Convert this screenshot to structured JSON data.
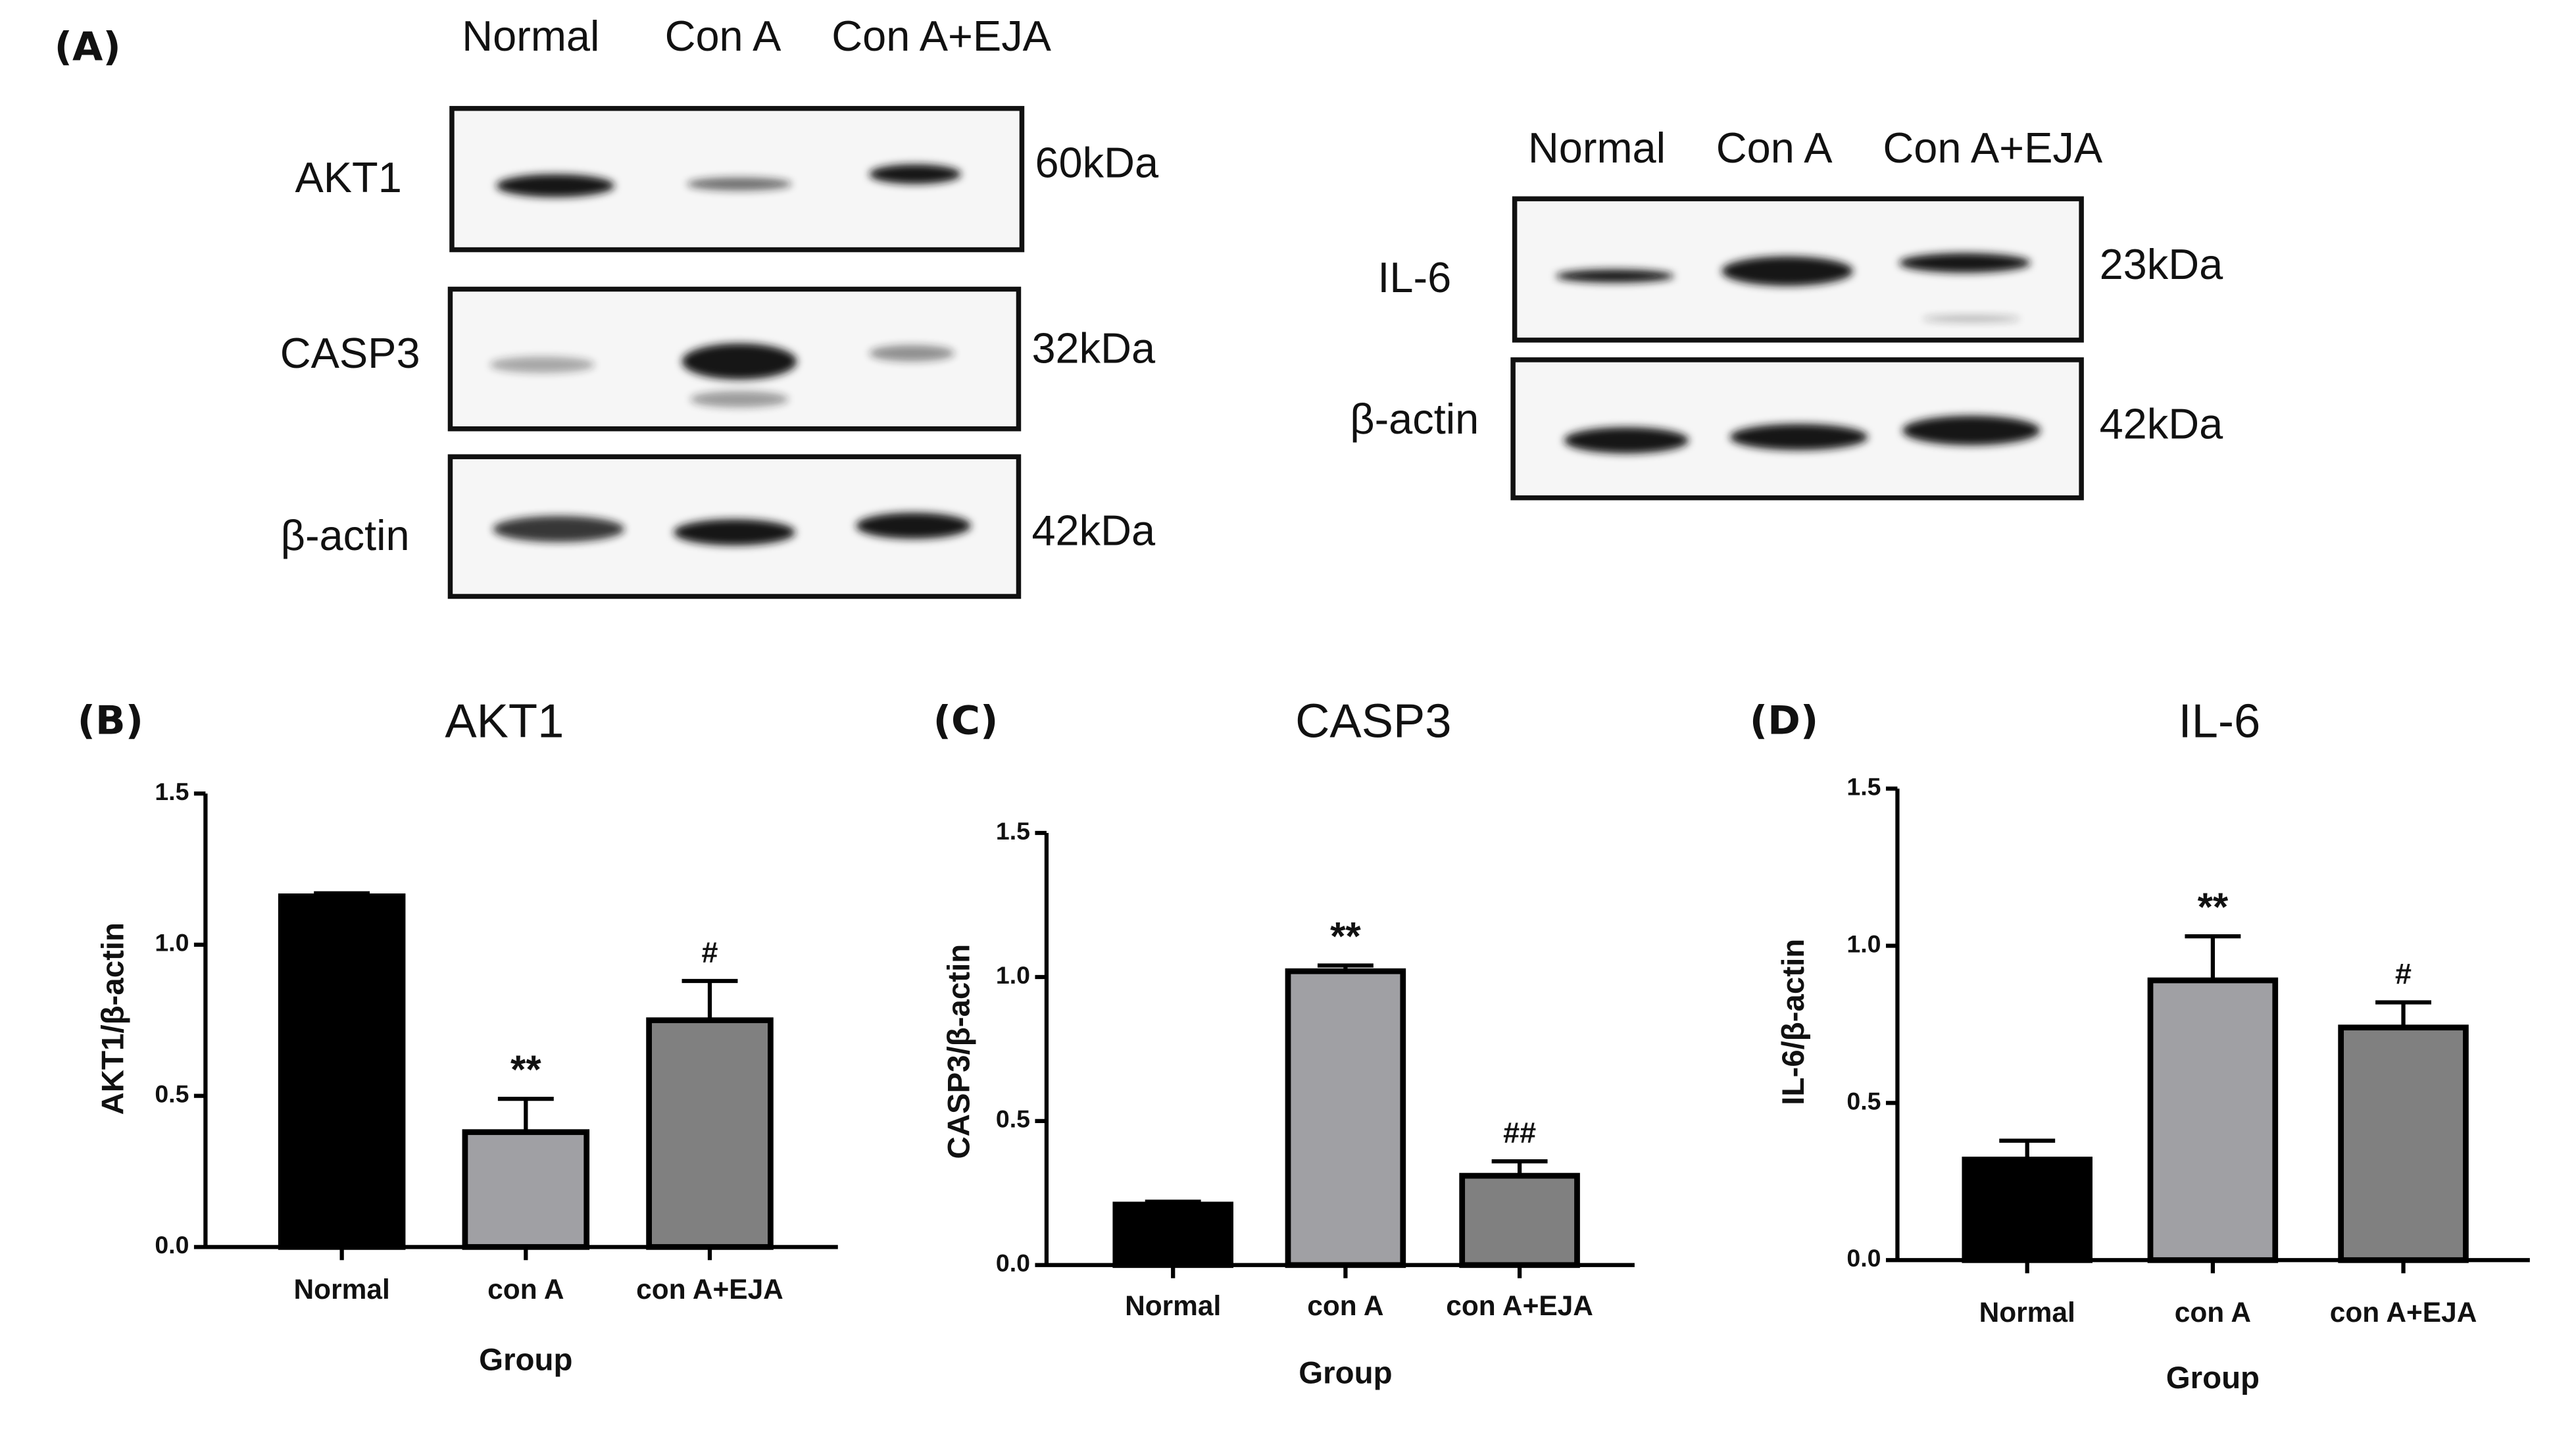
{
  "blots": {
    "label": "(A)",
    "left": {
      "lanes": [
        "Normal",
        "Con A",
        "Con A+EJA"
      ],
      "rows": [
        {
          "protein": "AKT1",
          "size": "60kDa"
        },
        {
          "protein": "CASP3",
          "size": "32kDa"
        },
        {
          "protein": "β-actin",
          "size": "42kDa"
        }
      ]
    },
    "right": {
      "lanes": [
        "Normal",
        "Con A",
        "Con A+EJA"
      ],
      "rows": [
        {
          "protein": "IL-6",
          "size": "23kDa"
        },
        {
          "protein": "β-actin",
          "size": "42kDa"
        }
      ]
    }
  },
  "chart_data": [
    {
      "type": "bar",
      "panel": "(B)",
      "title": "AKT1",
      "xlabel": "Group",
      "ylabel": "AKT1/β-actin",
      "categories": [
        "Normal",
        "con A",
        "con A+EJA"
      ],
      "values": [
        1.16,
        0.38,
        0.75
      ],
      "errors": [
        0.01,
        0.11,
        0.13
      ],
      "colors": [
        "#000000",
        "#a0a0a4",
        "#808080"
      ],
      "annotations": [
        {
          "index": 1,
          "text": "**"
        },
        {
          "index": 2,
          "text": "#"
        }
      ],
      "ylim": [
        0,
        1.5
      ],
      "yticks": [
        {
          "value": 0,
          "label": "0.0"
        },
        {
          "value": 0.5,
          "label": "0.5"
        },
        {
          "value": 1,
          "label": "1.0"
        },
        {
          "value": 1.5,
          "label": "1.5"
        }
      ]
    },
    {
      "type": "bar",
      "panel": "(C)",
      "title": "CASP3",
      "xlabel": "Group",
      "ylabel": "CASP3/β-actin",
      "categories": [
        "Normal",
        "con A",
        "con A+EJA"
      ],
      "values": [
        0.21,
        1.02,
        0.31
      ],
      "errors": [
        0.01,
        0.02,
        0.05
      ],
      "colors": [
        "#000000",
        "#a0a0a4",
        "#808080"
      ],
      "annotations": [
        {
          "index": 1,
          "text": "**"
        },
        {
          "index": 2,
          "text": "##"
        }
      ],
      "ylim": [
        0,
        1.5
      ],
      "yticks": [
        {
          "value": 0,
          "label": "0.0"
        },
        {
          "value": 0.5,
          "label": "0.5"
        },
        {
          "value": 1,
          "label": "1.0"
        },
        {
          "value": 1.5,
          "label": "1.5"
        }
      ]
    },
    {
      "type": "bar",
      "panel": "(D)",
      "title": "IL-6",
      "xlabel": "Group",
      "ylabel": "IL-6/β-actin",
      "categories": [
        "Normal",
        "con A",
        "con A+EJA"
      ],
      "values": [
        0.32,
        0.89,
        0.74
      ],
      "errors": [
        0.06,
        0.14,
        0.08
      ],
      "colors": [
        "#000000",
        "#a0a0a4",
        "#808080"
      ],
      "annotations": [
        {
          "index": 1,
          "text": "**"
        },
        {
          "index": 2,
          "text": "#"
        }
      ],
      "ylim": [
        0,
        1.5
      ],
      "yticks": [
        {
          "value": 0,
          "label": "0.0"
        },
        {
          "value": 0.5,
          "label": "0.5"
        },
        {
          "value": 1,
          "label": "1.0"
        },
        {
          "value": 1.5,
          "label": "1.5"
        }
      ]
    }
  ]
}
